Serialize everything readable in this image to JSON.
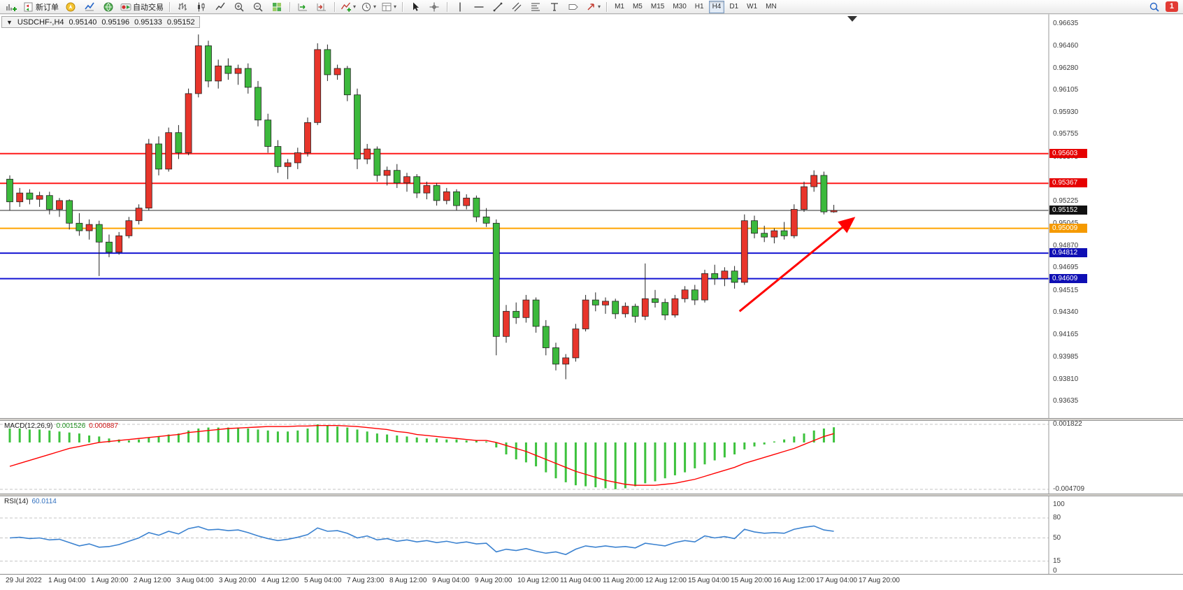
{
  "toolbar": {
    "new_order_label": "新订单",
    "autotrading_label": "自动交易",
    "timeframes": [
      "M1",
      "M5",
      "M15",
      "M30",
      "H1",
      "H4",
      "D1",
      "W1",
      "MN"
    ],
    "active_timeframe": "H4",
    "notification_badge": "1"
  },
  "icons": {
    "dropdown_caret": "▾",
    "one_click_arrow": "▼"
  },
  "chart_header": {
    "symbol": "USDCHF-,H4",
    "open": "0.95140",
    "high": "0.95196",
    "low": "0.95133",
    "close": "0.95152"
  },
  "indicators": {
    "macd": {
      "label": "MACD(12,26,9)",
      "value_main": "0.001526",
      "value_signal": "0.000887",
      "axis_max": "0.001822",
      "axis_min": "-0.004709"
    },
    "rsi": {
      "label": "RSI(14)",
      "value": "60.0114",
      "levels": [
        "100",
        "80",
        "50",
        "15",
        "0"
      ]
    }
  },
  "chart_data": {
    "type": "candlestick",
    "title": "USDCHF-,H4",
    "timeframe": "H4",
    "price_range": [
      0.93635,
      0.96635
    ],
    "y_ticks": [
      "0.96635",
      "0.96460",
      "0.96280",
      "0.96105",
      "0.95930",
      "0.95755",
      "0.95575",
      "0.95225",
      "0.95045",
      "0.94870",
      "0.94695",
      "0.94515",
      "0.94340",
      "0.94165",
      "0.93985",
      "0.93810",
      "0.93635"
    ],
    "x_labels": [
      "29 Jul 2022",
      "1 Aug 04:00",
      "1 Aug 20:00",
      "2 Aug 12:00",
      "3 Aug 04:00",
      "3 Aug 20:00",
      "4 Aug 12:00",
      "5 Aug 04:00",
      "7 Aug 23:00",
      "8 Aug 12:00",
      "9 Aug 04:00",
      "9 Aug 20:00",
      "10 Aug 12:00",
      "11 Aug 04:00",
      "11 Aug 20:00",
      "12 Aug 12:00",
      "15 Aug 04:00",
      "15 Aug 20:00",
      "16 Aug 12:00",
      "17 Aug 04:00",
      "17 Aug 20:00"
    ],
    "hlines": [
      {
        "price": 0.95603,
        "label": "0.95603",
        "color": "#ff1a1a",
        "tag_bg": "#e60000",
        "width": 2,
        "type": "resistance"
      },
      {
        "price": 0.95367,
        "label": "0.95367",
        "color": "#ff1a1a",
        "tag_bg": "#e60000",
        "width": 2,
        "type": "resistance"
      },
      {
        "price": 0.95152,
        "label": "0.95152",
        "color": "#2b2b2b",
        "tag_bg": "#111111",
        "width": 1,
        "type": "current-price"
      },
      {
        "price": 0.95009,
        "label": "0.95009",
        "color": "#ffa500",
        "tag_bg": "#f59a00",
        "width": 2,
        "type": "support"
      },
      {
        "price": 0.94812,
        "label": "0.94812",
        "color": "#1414d2",
        "tag_bg": "#0f0fb4",
        "width": 2,
        "type": "support"
      },
      {
        "price": 0.94609,
        "label": "0.94609",
        "color": "#1414d2",
        "tag_bg": "#0f0fb4",
        "width": 2,
        "type": "support"
      }
    ],
    "candles_ohlc": [
      [
        0.954,
        0.9543,
        0.9515,
        0.9522
      ],
      [
        0.9522,
        0.9533,
        0.9518,
        0.9529
      ],
      [
        0.9529,
        0.9532,
        0.952,
        0.9524
      ],
      [
        0.9524,
        0.953,
        0.9518,
        0.9527
      ],
      [
        0.9527,
        0.953,
        0.9512,
        0.9516
      ],
      [
        0.9516,
        0.9525,
        0.951,
        0.9523
      ],
      [
        0.9523,
        0.9524,
        0.95,
        0.9505
      ],
      [
        0.9505,
        0.9513,
        0.9495,
        0.9499
      ],
      [
        0.9499,
        0.9508,
        0.9492,
        0.9504
      ],
      [
        0.9504,
        0.9507,
        0.9463,
        0.949
      ],
      [
        0.949,
        0.9496,
        0.9478,
        0.9482
      ],
      [
        0.9482,
        0.9498,
        0.948,
        0.9495
      ],
      [
        0.9495,
        0.951,
        0.9493,
        0.9507
      ],
      [
        0.9507,
        0.952,
        0.9504,
        0.9517
      ],
      [
        0.9517,
        0.9572,
        0.9515,
        0.9568
      ],
      [
        0.9568,
        0.9574,
        0.9543,
        0.9548
      ],
      [
        0.9548,
        0.9581,
        0.9546,
        0.9577
      ],
      [
        0.9577,
        0.9583,
        0.9556,
        0.9561
      ],
      [
        0.9561,
        0.9612,
        0.9559,
        0.9608
      ],
      [
        0.9608,
        0.9655,
        0.9605,
        0.9646
      ],
      [
        0.9646,
        0.965,
        0.9613,
        0.9618
      ],
      [
        0.9618,
        0.9635,
        0.9612,
        0.963
      ],
      [
        0.963,
        0.9636,
        0.9619,
        0.9624
      ],
      [
        0.9624,
        0.9631,
        0.9615,
        0.9628
      ],
      [
        0.9628,
        0.9632,
        0.9608,
        0.9613
      ],
      [
        0.9613,
        0.9618,
        0.9582,
        0.9587
      ],
      [
        0.9587,
        0.9592,
        0.9561,
        0.9566
      ],
      [
        0.9566,
        0.9571,
        0.9545,
        0.955
      ],
      [
        0.955,
        0.9556,
        0.954,
        0.9553
      ],
      [
        0.9553,
        0.9565,
        0.9548,
        0.9561
      ],
      [
        0.9561,
        0.9589,
        0.9558,
        0.9585
      ],
      [
        0.9585,
        0.9648,
        0.9583,
        0.9643
      ],
      [
        0.9643,
        0.9647,
        0.9618,
        0.9623
      ],
      [
        0.9623,
        0.9631,
        0.9619,
        0.9628
      ],
      [
        0.9628,
        0.963,
        0.9602,
        0.9607
      ],
      [
        0.9607,
        0.9612,
        0.9548,
        0.9556
      ],
      [
        0.9556,
        0.9568,
        0.9552,
        0.9564
      ],
      [
        0.9564,
        0.9566,
        0.9538,
        0.9543
      ],
      [
        0.9543,
        0.955,
        0.9535,
        0.9547
      ],
      [
        0.9547,
        0.9552,
        0.9533,
        0.9537
      ],
      [
        0.9537,
        0.9545,
        0.953,
        0.9542
      ],
      [
        0.9542,
        0.9544,
        0.9525,
        0.9529
      ],
      [
        0.9529,
        0.9538,
        0.9524,
        0.9535
      ],
      [
        0.9535,
        0.9537,
        0.9519,
        0.9523
      ],
      [
        0.9523,
        0.9533,
        0.952,
        0.953
      ],
      [
        0.953,
        0.9532,
        0.9515,
        0.9519
      ],
      [
        0.9519,
        0.9528,
        0.9516,
        0.9525
      ],
      [
        0.9525,
        0.9527,
        0.9506,
        0.951
      ],
      [
        0.951,
        0.9517,
        0.9502,
        0.9505
      ],
      [
        0.9505,
        0.9508,
        0.94,
        0.9415
      ],
      [
        0.9415,
        0.944,
        0.941,
        0.9435
      ],
      [
        0.9435,
        0.9442,
        0.9425,
        0.943
      ],
      [
        0.943,
        0.9448,
        0.9426,
        0.9444
      ],
      [
        0.9444,
        0.9446,
        0.9418,
        0.9423
      ],
      [
        0.9423,
        0.9428,
        0.94,
        0.9406
      ],
      [
        0.9406,
        0.941,
        0.9388,
        0.9393
      ],
      [
        0.9393,
        0.9401,
        0.9381,
        0.9398
      ],
      [
        0.9398,
        0.9425,
        0.9395,
        0.9421
      ],
      [
        0.9421,
        0.9448,
        0.9419,
        0.9444
      ],
      [
        0.9444,
        0.945,
        0.9435,
        0.944
      ],
      [
        0.944,
        0.9446,
        0.9433,
        0.9443
      ],
      [
        0.9443,
        0.9445,
        0.9429,
        0.9433
      ],
      [
        0.9433,
        0.9442,
        0.943,
        0.9439
      ],
      [
        0.9439,
        0.9441,
        0.9426,
        0.9431
      ],
      [
        0.9431,
        0.9473,
        0.9428,
        0.9445
      ],
      [
        0.9445,
        0.9452,
        0.9438,
        0.9442
      ],
      [
        0.9442,
        0.9445,
        0.9428,
        0.9432
      ],
      [
        0.9432,
        0.9448,
        0.943,
        0.9445
      ],
      [
        0.9445,
        0.9455,
        0.9442,
        0.9452
      ],
      [
        0.9452,
        0.9456,
        0.944,
        0.9444
      ],
      [
        0.9444,
        0.9468,
        0.9442,
        0.9465
      ],
      [
        0.9465,
        0.9472,
        0.9456,
        0.9461
      ],
      [
        0.9461,
        0.947,
        0.9455,
        0.9467
      ],
      [
        0.9467,
        0.9471,
        0.9453,
        0.9458
      ],
      [
        0.9458,
        0.9512,
        0.9456,
        0.9507
      ],
      [
        0.9507,
        0.9511,
        0.9493,
        0.9497
      ],
      [
        0.9497,
        0.9503,
        0.949,
        0.9494
      ],
      [
        0.9494,
        0.9501,
        0.9489,
        0.9499
      ],
      [
        0.9499,
        0.9506,
        0.9492,
        0.9495
      ],
      [
        0.9495,
        0.952,
        0.9493,
        0.9516
      ],
      [
        0.9516,
        0.9538,
        0.9514,
        0.9534
      ],
      [
        0.9534,
        0.9547,
        0.953,
        0.9543
      ],
      [
        0.9543,
        0.9546,
        0.9512,
        0.9514
      ],
      [
        0.9514,
        0.95196,
        0.95133,
        0.95152
      ]
    ],
    "macd": {
      "range": [
        -0.004709,
        0.001822
      ],
      "histogram": [
        0.0014,
        0.0014,
        0.0013,
        0.0013,
        0.0012,
        0.0011,
        0.001,
        0.0009,
        0.0007,
        0.0006,
        0.0004,
        0.0003,
        0.0002,
        0.0003,
        0.0005,
        0.0006,
        0.0008,
        0.0009,
        0.0012,
        0.0014,
        0.0015,
        0.0015,
        0.0015,
        0.0015,
        0.0014,
        0.0013,
        0.0012,
        0.0011,
        0.0011,
        0.0012,
        0.0014,
        0.001822,
        0.0017,
        0.0016,
        0.0015,
        0.0013,
        0.0011,
        0.0009,
        0.0008,
        0.0007,
        0.0006,
        0.0005,
        0.0004,
        0.0004,
        0.0003,
        0.0003,
        0.0002,
        0.0002,
        0.0001,
        -0.0005,
        -0.0012,
        -0.0017,
        -0.002,
        -0.0024,
        -0.003,
        -0.0036,
        -0.004,
        -0.0043,
        -0.0044,
        -0.0045,
        -0.0046,
        -0.0047,
        -0.0046,
        -0.0044,
        -0.0041,
        -0.0039,
        -0.0036,
        -0.0033,
        -0.003,
        -0.0026,
        -0.0022,
        -0.0018,
        -0.0015,
        -0.0012,
        -0.0007,
        -0.0004,
        -0.0002,
        0.0001,
        0.0003,
        0.0006,
        0.0009,
        0.0012,
        0.0014,
        0.001526
      ],
      "signal": [
        -0.0024,
        -0.0021,
        -0.0018,
        -0.0015,
        -0.0012,
        -0.0009,
        -0.0006,
        -0.0004,
        -0.0002,
        0.0,
        0.0001,
        0.0002,
        0.0003,
        0.0004,
        0.0005,
        0.0006,
        0.0007,
        0.0008,
        0.001,
        0.0011,
        0.0012,
        0.0013,
        0.0014,
        0.00145,
        0.0015,
        0.00155,
        0.0016,
        0.0016,
        0.0016,
        0.00165,
        0.00165,
        0.0017,
        0.0017,
        0.0017,
        0.00165,
        0.0016,
        0.0015,
        0.0014,
        0.0013,
        0.0011,
        0.001,
        0.0008,
        0.0007,
        0.0006,
        0.0005,
        0.0004,
        0.0003,
        0.0002,
        0.0002,
        0.0,
        -0.0003,
        -0.0006,
        -0.0009,
        -0.0013,
        -0.0017,
        -0.0021,
        -0.0025,
        -0.0029,
        -0.0032,
        -0.0035,
        -0.0038,
        -0.004,
        -0.0042,
        -0.0043,
        -0.0043,
        -0.0043,
        -0.0042,
        -0.0041,
        -0.0039,
        -0.0037,
        -0.0034,
        -0.0031,
        -0.0028,
        -0.0025,
        -0.0021,
        -0.0018,
        -0.0015,
        -0.0012,
        -0.0009,
        -0.0006,
        -0.0002,
        0.0002,
        0.0006,
        0.000887
      ]
    },
    "rsi": {
      "range": [
        0,
        100
      ],
      "values": [
        50,
        51,
        49,
        50,
        47,
        48,
        43,
        38,
        41,
        36,
        37,
        40,
        45,
        50,
        58,
        54,
        60,
        56,
        64,
        67,
        62,
        63,
        61,
        62,
        58,
        53,
        49,
        46,
        48,
        51,
        55,
        65,
        60,
        61,
        57,
        50,
        53,
        47,
        49,
        45,
        47,
        44,
        46,
        43,
        45,
        42,
        44,
        41,
        42,
        29,
        33,
        31,
        34,
        30,
        27,
        29,
        25,
        33,
        38,
        36,
        38,
        36,
        37,
        35,
        42,
        40,
        38,
        43,
        46,
        44,
        53,
        50,
        52,
        49,
        63,
        59,
        57,
        58,
        57,
        63,
        66,
        68,
        62,
        60.0114
      ]
    },
    "colors": {
      "bull": "#e8352b",
      "bear": "#3cb93c",
      "wick": "#222222",
      "macd_histogram": "#3cc23c",
      "macd_signal": "#ff0000",
      "rsi_line": "#3b82d0",
      "annotation_arrow": "#ff0000"
    },
    "annotations": [
      {
        "type": "trend-arrow",
        "color": "#ff0000",
        "from": {
          "x_index": 73.5,
          "price": 0.9435
        },
        "to": {
          "x_index": 85,
          "price": 0.9509
        }
      }
    ]
  }
}
